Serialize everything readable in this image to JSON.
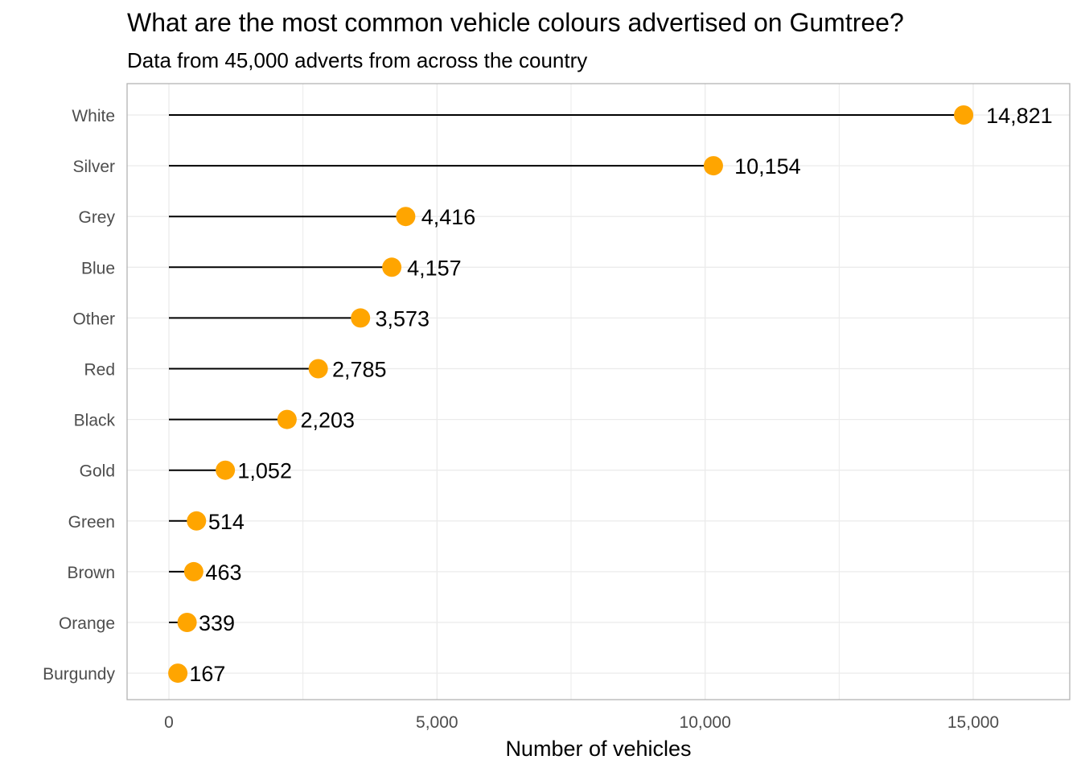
{
  "chart_data": {
    "type": "lollipop",
    "title": "What are the most common vehicle colours advertised on Gumtree?",
    "subtitle": "Data from 45,000 adverts from across the country",
    "xlabel": "Number of vehicles",
    "ylabel": "",
    "xlim": [
      -780,
      16800
    ],
    "x_ticks": [
      0,
      5000,
      10000,
      15000
    ],
    "x_tick_labels": [
      "0",
      "5,000",
      "10,000",
      "15,000"
    ],
    "grid": true,
    "legend": "none",
    "categories": [
      "White",
      "Silver",
      "Grey",
      "Blue",
      "Other",
      "Red",
      "Black",
      "Gold",
      "Green",
      "Brown",
      "Orange",
      "Burgundy"
    ],
    "values": [
      14821,
      10154,
      4416,
      4157,
      3573,
      2785,
      2203,
      1052,
      514,
      463,
      339,
      167
    ],
    "value_labels": [
      "14,821",
      "10,154",
      "4,416",
      "4,157",
      "3,573",
      "2,785",
      "2,203",
      "1,052",
      "514",
      "463",
      "339",
      "167"
    ],
    "colors": {
      "point": "#FFA500",
      "stem": "#000000",
      "grid": "#ebebeb",
      "panel_border": "#b3b3b3"
    }
  }
}
